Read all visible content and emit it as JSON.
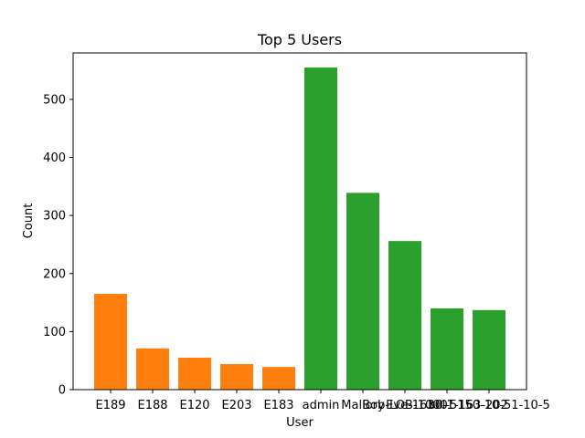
{
  "chart_data": {
    "type": "bar",
    "title": "Top 5 Users",
    "xlabel": "User",
    "ylabel": "Count",
    "ylim": [
      0,
      580
    ],
    "yticks": [
      0,
      100,
      200,
      300,
      400,
      500
    ],
    "grid": false,
    "legend": "none",
    "categories": [
      "E189",
      "E188",
      "E120",
      "E203",
      "E183",
      "admin",
      "Mallory",
      "Bob-LOB-1000",
      "Eve-1630-1-163-202",
      "bill-5150-10-51-10-5"
    ],
    "values": [
      165,
      71,
      55,
      44,
      39,
      555,
      339,
      256,
      140,
      137
    ],
    "bar_colors": [
      "#ff7f0e",
      "#ff7f0e",
      "#ff7f0e",
      "#ff7f0e",
      "#ff7f0e",
      "#2ca02c",
      "#2ca02c",
      "#2ca02c",
      "#2ca02c",
      "#2ca02c"
    ]
  }
}
